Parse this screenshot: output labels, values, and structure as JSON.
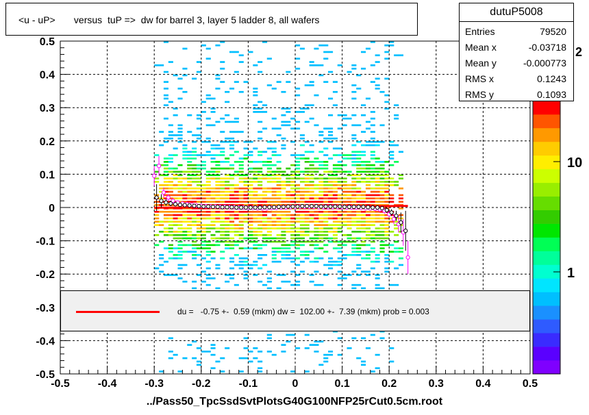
{
  "title": "<u - uP>       versus  tuP =>  dw for barrel 3, layer 5 ladder 8, all wafers",
  "stats": {
    "name": "dutuP5008",
    "rows": [
      {
        "label": "Entries",
        "value": "79520"
      },
      {
        "label": "Mean x",
        "value": "-0.03718"
      },
      {
        "label": "Mean y",
        "value": "-0.000773"
      },
      {
        "label": "RMS x",
        "value": "0.1243"
      },
      {
        "label": "RMS y",
        "value": "0.1093"
      }
    ]
  },
  "fit_text": "du =   -0.75 +-  0.59 (mkm) dw =  102.00 +-  7.39 (mkm) prob = 0.003",
  "colors": {
    "fit_line": "#ff0000",
    "legend_fill": "#f0f0f0",
    "palette": [
      "#7f00ff",
      "#5a00ff",
      "#3a2bff",
      "#2f5bff",
      "#1a90ff",
      "#00bfff",
      "#00e5ff",
      "#00ffd0",
      "#00ff9a",
      "#00ff55",
      "#00e600",
      "#33cc00",
      "#66dd00",
      "#99ee00",
      "#ccff00",
      "#ffee00",
      "#ffcc00",
      "#ff9900",
      "#ff5500",
      "#ff0000"
    ]
  },
  "chart_data": {
    "type": "heatmap",
    "title": "<u - uP>       versus  tuP =>  dw for barrel 3, layer 5 ladder 8, all wafers",
    "xlabel": "../Pass50_TpcSsdSvtPlotsG40G100NFP25rCut0.5cm.root",
    "ylabel": "",
    "xlim": [
      -0.5,
      0.5
    ],
    "ylim": [
      -0.5,
      0.5
    ],
    "x_ticks": [
      "-0.5",
      "-0.4",
      "-0.3",
      "-0.2",
      "-0.1",
      "0",
      "0.1",
      "0.2",
      "0.3",
      "0.4",
      "0.5"
    ],
    "y_ticks": [
      "-0.5",
      "-0.4",
      "-0.3",
      "-0.2",
      "-0.1",
      "0",
      "0.1",
      "0.2",
      "0.3",
      "0.4",
      "0.5"
    ],
    "grid": true,
    "log_z": true,
    "z_ticks": [
      "1",
      "10"
    ],
    "z_exp_label": "10",
    "z_exp_sup": "2",
    "x_extent": [
      -0.3,
      0.23
    ],
    "band_center": 0.0,
    "band_rms": 0.1093,
    "fit_line": {
      "x": [
        -0.3,
        0.24
      ],
      "y": [
        -0.00075,
        0.0047
      ]
    },
    "profile_black": {
      "x": [
        -0.295,
        -0.285,
        -0.275,
        -0.265,
        -0.255,
        -0.245,
        -0.235,
        -0.225,
        -0.215,
        -0.205,
        -0.195,
        -0.185,
        -0.175,
        -0.165,
        -0.155,
        -0.145,
        -0.135,
        -0.125,
        -0.115,
        -0.105,
        -0.095,
        -0.085,
        -0.075,
        -0.065,
        -0.055,
        -0.045,
        -0.035,
        -0.025,
        -0.015,
        -0.005,
        0.005,
        0.015,
        0.025,
        0.035,
        0.045,
        0.055,
        0.065,
        0.075,
        0.085,
        0.095,
        0.105,
        0.115,
        0.125,
        0.135,
        0.145,
        0.155,
        0.165,
        0.175,
        0.185,
        0.195,
        0.205,
        0.215,
        0.225,
        0.235
      ],
      "y": [
        0.03,
        0.02,
        0.015,
        0.012,
        0.01,
        0.008,
        0.007,
        0.006,
        0.005,
        0.004,
        0.003,
        0.003,
        0.002,
        0.002,
        0.001,
        0.001,
        0.001,
        0.0,
        0.0,
        0.0,
        0.0,
        0.0,
        0.0,
        0.001,
        0.001,
        0.001,
        0.002,
        0.002,
        0.003,
        0.003,
        0.003,
        0.004,
        0.004,
        0.004,
        0.004,
        0.003,
        0.003,
        0.003,
        0.003,
        0.003,
        0.002,
        0.002,
        0.002,
        0.002,
        0.002,
        0.001,
        0.0,
        0.0,
        -0.002,
        -0.008,
        -0.015,
        -0.025,
        -0.045,
        -0.07
      ],
      "err": [
        0.04,
        0.02,
        0.01,
        0.008,
        0.006,
        0.005,
        0.005,
        0.004,
        0.004,
        0.004,
        0.004,
        0.004,
        0.004,
        0.004,
        0.004,
        0.004,
        0.004,
        0.004,
        0.004,
        0.004,
        0.004,
        0.004,
        0.004,
        0.004,
        0.004,
        0.004,
        0.004,
        0.004,
        0.004,
        0.004,
        0.004,
        0.004,
        0.004,
        0.004,
        0.004,
        0.004,
        0.004,
        0.004,
        0.004,
        0.004,
        0.004,
        0.004,
        0.004,
        0.004,
        0.004,
        0.004,
        0.004,
        0.005,
        0.006,
        0.008,
        0.01,
        0.015,
        0.03,
        0.06
      ]
    },
    "profile_magenta": {
      "x": [
        -0.3,
        -0.29,
        -0.28,
        -0.27,
        -0.26,
        -0.25,
        -0.24,
        -0.23,
        -0.22,
        -0.21,
        -0.2,
        -0.19,
        -0.18,
        -0.17,
        -0.16,
        -0.15,
        -0.14,
        -0.13,
        -0.12,
        -0.11,
        -0.1,
        -0.09,
        -0.08,
        -0.07,
        -0.06,
        -0.05,
        -0.04,
        -0.03,
        -0.02,
        -0.01,
        0.0,
        0.01,
        0.02,
        0.03,
        0.04,
        0.05,
        0.06,
        0.07,
        0.08,
        0.09,
        0.1,
        0.11,
        0.12,
        0.13,
        0.14,
        0.15,
        0.16,
        0.17,
        0.18,
        0.19,
        0.2,
        0.21,
        0.22,
        0.23,
        0.24
      ],
      "y": [
        0.095,
        0.125,
        0.045,
        0.03,
        0.02,
        0.015,
        0.012,
        0.01,
        0.008,
        0.006,
        0.005,
        0.004,
        0.003,
        0.003,
        0.002,
        0.002,
        0.001,
        0.001,
        0.0,
        0.0,
        -0.001,
        -0.001,
        -0.002,
        -0.002,
        -0.002,
        -0.001,
        -0.001,
        0.0,
        0.0,
        0.001,
        0.001,
        0.002,
        0.002,
        0.002,
        0.002,
        0.001,
        0.001,
        0.001,
        0.001,
        0.001,
        0.001,
        0.0,
        0.0,
        0.0,
        -0.001,
        -0.002,
        -0.003,
        -0.004,
        -0.006,
        -0.01,
        -0.02,
        -0.035,
        -0.05,
        -0.075,
        -0.15
      ],
      "err": [
        0.03,
        0.03,
        0.015,
        0.01,
        0.008,
        0.006,
        0.005,
        0.005,
        0.004,
        0.004,
        0.004,
        0.004,
        0.004,
        0.004,
        0.004,
        0.004,
        0.004,
        0.004,
        0.004,
        0.004,
        0.004,
        0.004,
        0.004,
        0.004,
        0.004,
        0.004,
        0.004,
        0.004,
        0.004,
        0.004,
        0.004,
        0.004,
        0.004,
        0.004,
        0.004,
        0.004,
        0.004,
        0.004,
        0.004,
        0.004,
        0.004,
        0.004,
        0.004,
        0.004,
        0.004,
        0.004,
        0.004,
        0.005,
        0.006,
        0.008,
        0.01,
        0.015,
        0.025,
        0.04,
        0.05
      ]
    }
  }
}
